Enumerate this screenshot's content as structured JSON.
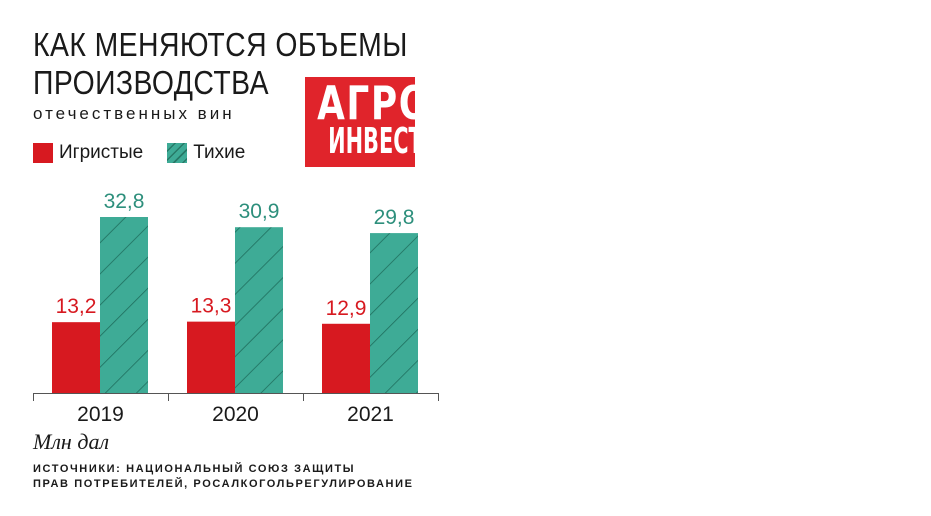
{
  "title_line1": "КАК МЕНЯЮТСЯ ОБЪЕМЫ",
  "title_line2": "ПРОИЗВОДСТВА",
  "subtitle": "отечественных вин",
  "logo": {
    "line1": "АГРО",
    "line2": "ИНВЕСТОР"
  },
  "unit": "Млн дал",
  "source": {
    "line1": "ИСТОЧНИКИ: НАЦИОНАЛЬНЫЙ СОЮЗ ЗАЩИТЫ",
    "line2": "ПРАВ ПОТРЕБИТЕЛЕЙ, РОСАЛКОГОЛЬРЕГУЛИРОВАНИЕ"
  },
  "colors": {
    "sparkling": "#d71920",
    "still": "#3eab96",
    "still_label": "#2d8f7c",
    "logo_bg": "#e0242b"
  },
  "chart_data": {
    "type": "bar",
    "categories": [
      "2019",
      "2020",
      "2021"
    ],
    "series": [
      {
        "name": "Игристые",
        "values": [
          13.2,
          13.3,
          12.9
        ],
        "labels": [
          "13,2",
          "13,3",
          "12,9"
        ]
      },
      {
        "name": "Тихие",
        "values": [
          32.8,
          30.9,
          29.8
        ],
        "labels": [
          "32,8",
          "30,9",
          "29,8"
        ]
      }
    ],
    "ylim": [
      0,
      32.8
    ],
    "legend": "top-left",
    "grid": false
  }
}
